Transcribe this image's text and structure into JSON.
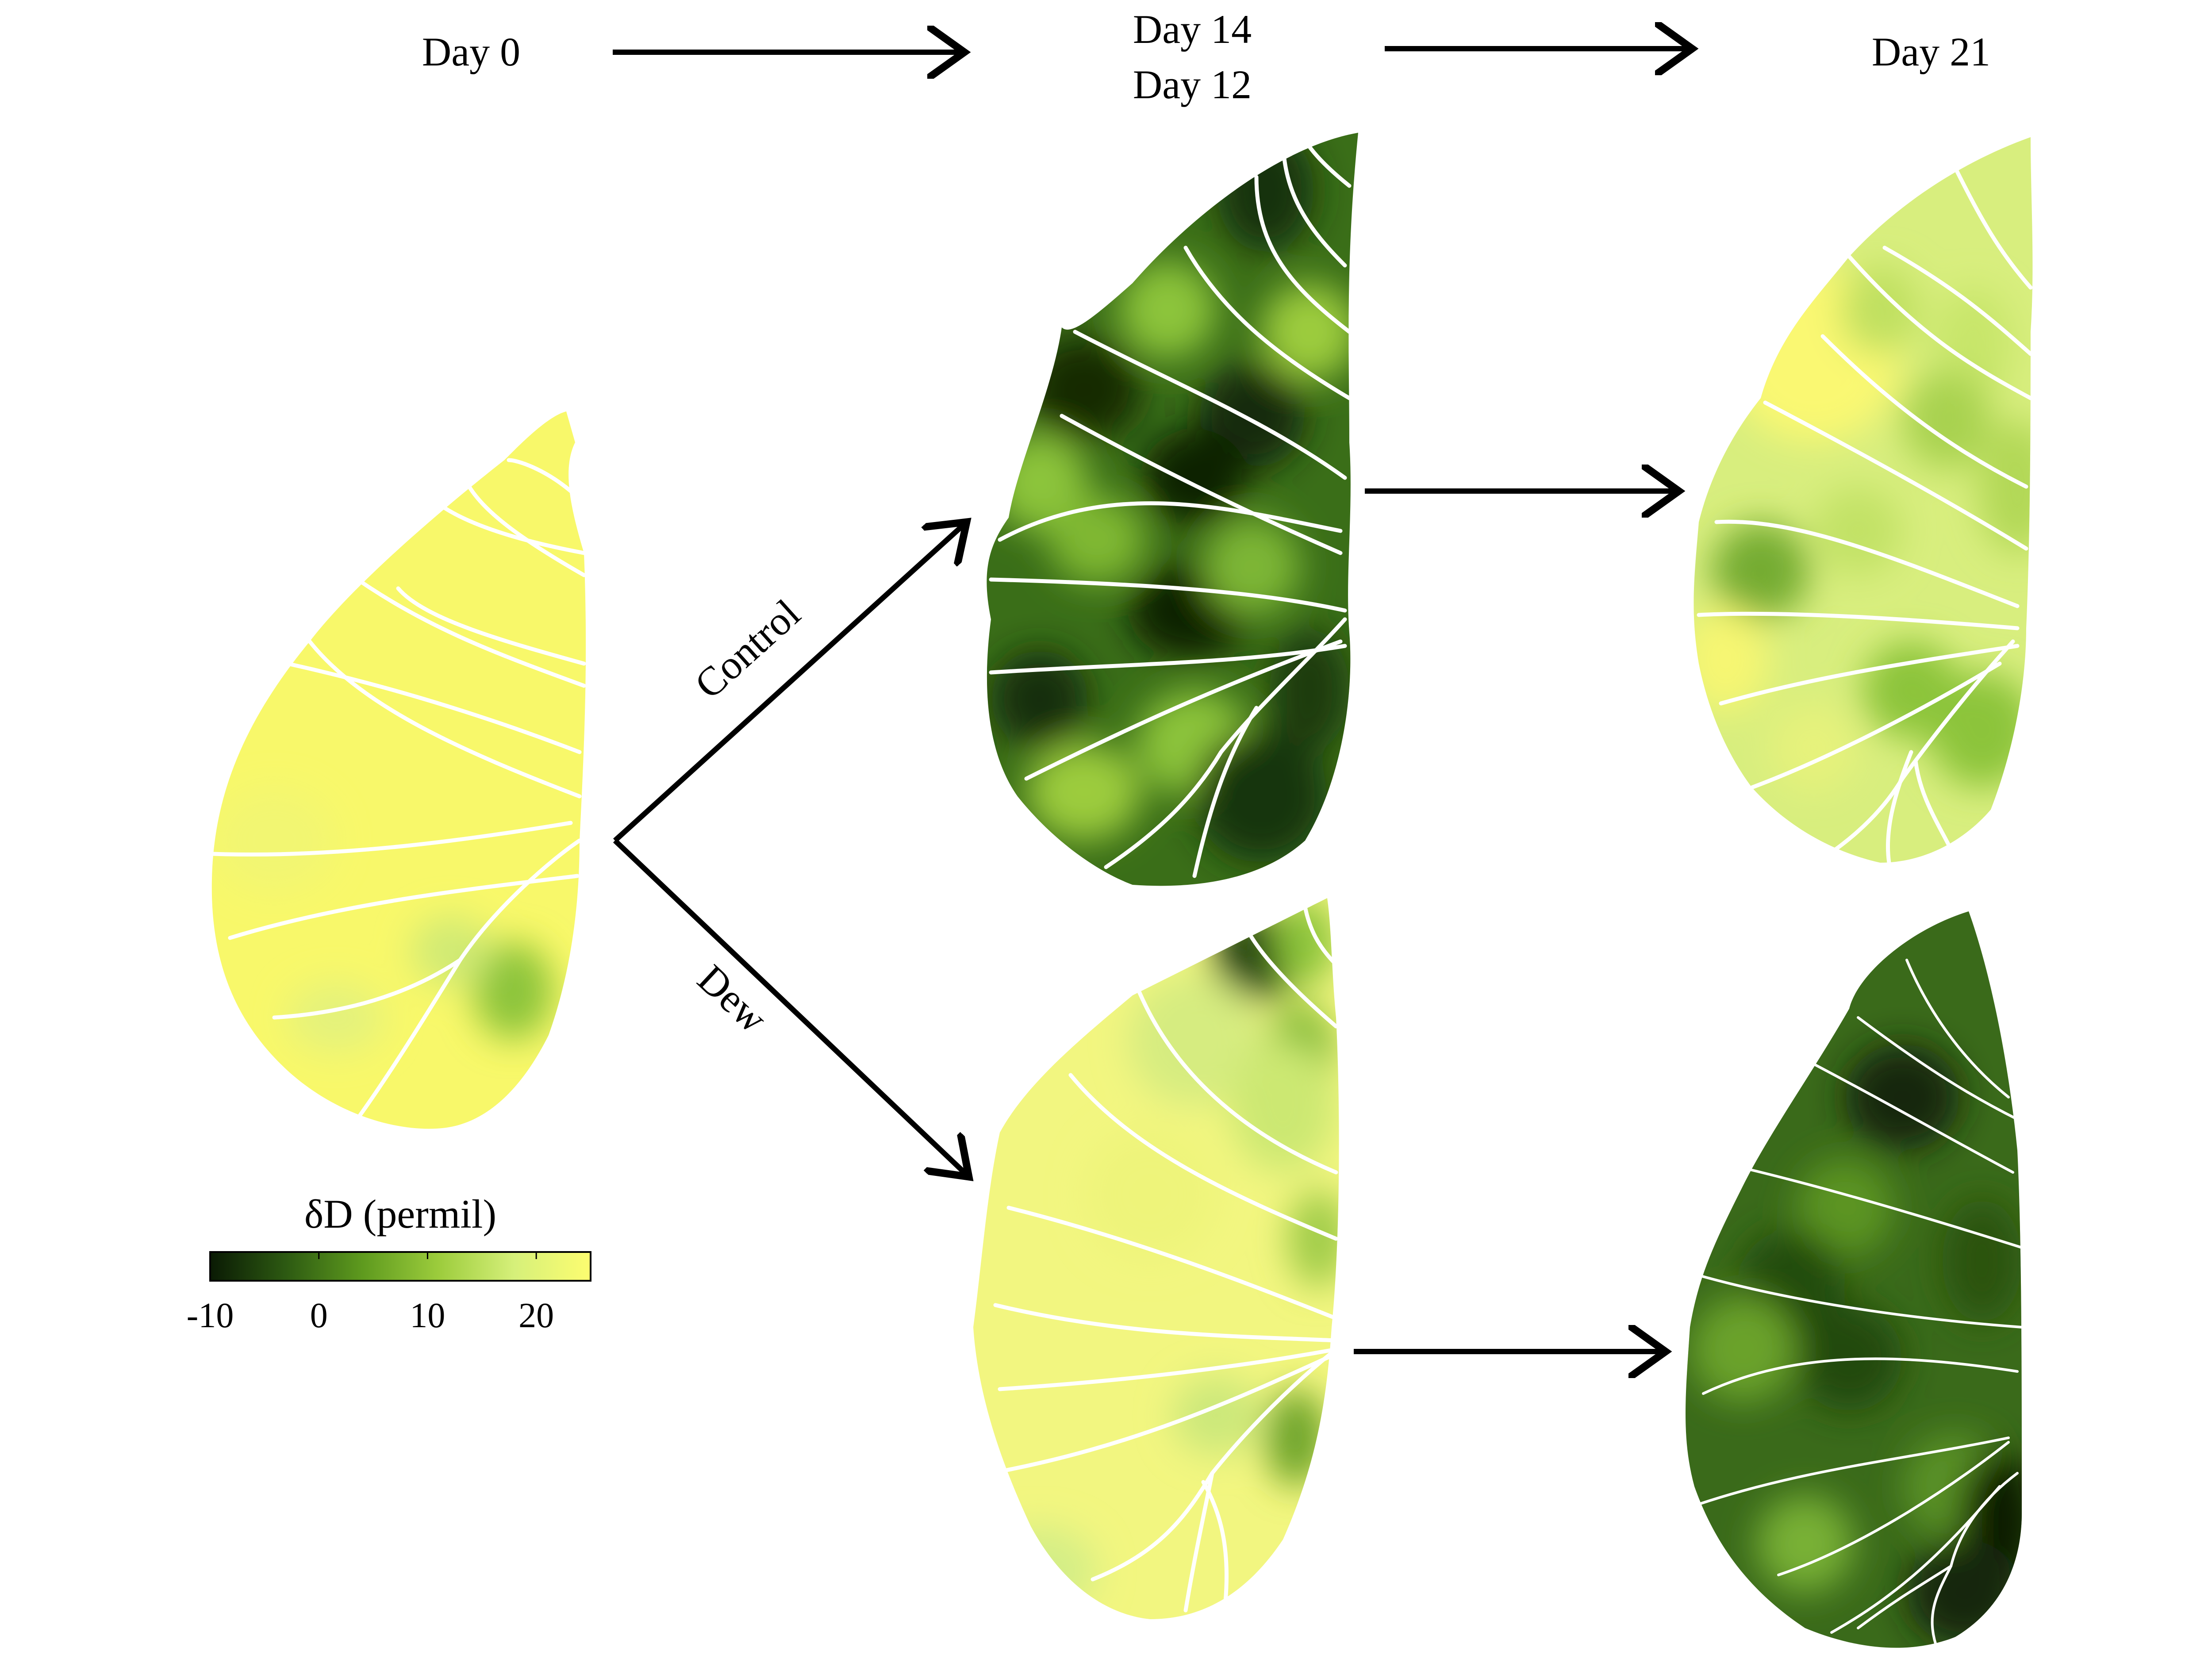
{
  "timeline": {
    "day0": "Day 0",
    "day14": "Day 14",
    "day12": "Day 12",
    "day21": "Day 21"
  },
  "branches": {
    "control": "Control",
    "dew": "Dew"
  },
  "colorbar": {
    "title": "δD (permil)",
    "ticks": [
      "-10",
      "0",
      "10",
      "20"
    ],
    "range": [
      -10,
      25
    ],
    "colors": [
      "#0a1a04",
      "#2d5a12",
      "#5e9a1e",
      "#9ccc3c",
      "#d6f07a",
      "#fdfd70"
    ]
  },
  "leaf_colors": {
    "day0": "#f8f86a",
    "control_day14": "#3a6e18",
    "control_day21": "#d8ee7e",
    "dew_day12": "#f2f680",
    "dew_day21": "#3a6a1a"
  }
}
